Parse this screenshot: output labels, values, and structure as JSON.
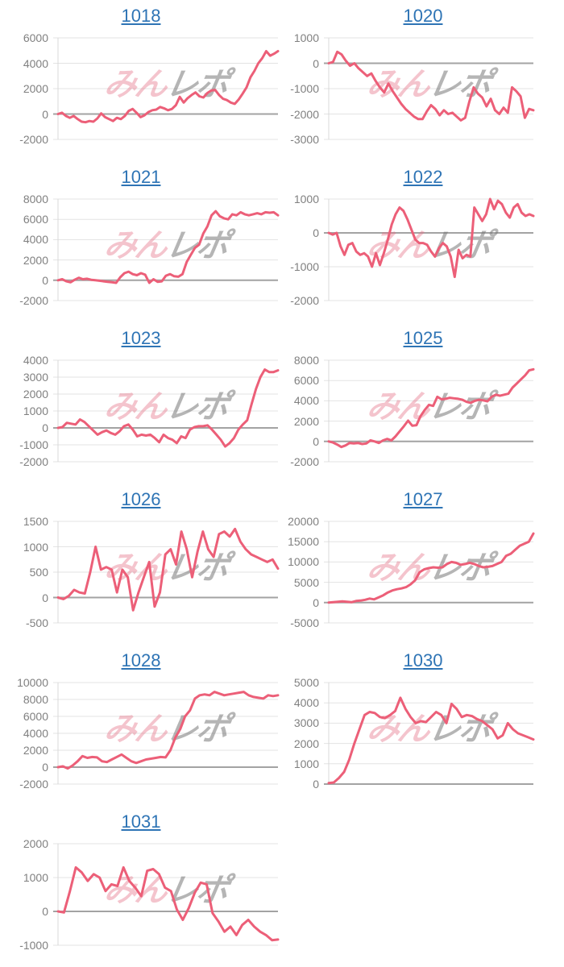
{
  "page": {
    "background": "#ffffff"
  },
  "styles": {
    "line_color": "#ec5f78",
    "grid_color": "#e3e3e3",
    "zero_line_color": "#a3a3a3",
    "axis_color": "#d9d9d9",
    "tick_label_color": "#808080",
    "title_link_color": "#2e74b5",
    "watermark_pink": "rgba(228,108,130,0.40)",
    "watermark_gray": "rgba(120,120,120,0.55)"
  },
  "watermark": {
    "pink_text": "みん",
    "gray_text": "レポ"
  },
  "chart_data": [
    {
      "type": "line",
      "title": "1018",
      "ylim": [
        -2000,
        6000
      ],
      "ytick_step": 2000,
      "yticks": [
        "6000",
        "4000",
        "2000",
        "0",
        "-2000"
      ],
      "values": [
        0,
        100,
        -150,
        -300,
        -150,
        -400,
        -600,
        -650,
        -550,
        -600,
        -350,
        50,
        -250,
        -400,
        -550,
        -300,
        -400,
        -150,
        250,
        400,
        100,
        -250,
        -100,
        150,
        300,
        350,
        550,
        450,
        300,
        400,
        700,
        1350,
        900,
        1250,
        1500,
        1700,
        1400,
        1300,
        1650,
        1850,
        1900,
        1500,
        1200,
        1100,
        900,
        800,
        1150,
        1600,
        2100,
        2900,
        3400,
        4000,
        4400,
        4950,
        4600,
        4750,
        4950
      ]
    },
    {
      "type": "line",
      "title": "1020",
      "ylim": [
        -3000,
        1000
      ],
      "ytick_step": 1000,
      "yticks": [
        "1000",
        "0",
        "-1000",
        "-2000",
        "-3000"
      ],
      "values": [
        0,
        50,
        450,
        350,
        100,
        -100,
        0,
        -200,
        -350,
        -500,
        -400,
        -700,
        -950,
        -1150,
        -800,
        -1100,
        -1350,
        -1600,
        -1800,
        -1950,
        -2100,
        -2200,
        -2200,
        -1900,
        -1650,
        -1800,
        -2050,
        -1850,
        -2000,
        -1950,
        -2100,
        -2250,
        -2150,
        -1500,
        -950,
        -1200,
        -1350,
        -1700,
        -1400,
        -1850,
        -2000,
        -1750,
        -1950,
        -950,
        -1100,
        -1300,
        -2150,
        -1800,
        -1850
      ]
    },
    {
      "type": "line",
      "title": "1021",
      "ylim": [
        -2000,
        8000
      ],
      "ytick_step": 2000,
      "yticks": [
        "8000",
        "6000",
        "4000",
        "2000",
        "0",
        "-2000"
      ],
      "values": [
        0,
        100,
        -100,
        -200,
        50,
        250,
        100,
        150,
        50,
        0,
        -50,
        -100,
        -150,
        -200,
        -250,
        300,
        700,
        850,
        600,
        500,
        700,
        550,
        -250,
        100,
        -150,
        -100,
        450,
        600,
        400,
        350,
        600,
        1800,
        2500,
        3200,
        3500,
        4600,
        5300,
        6400,
        6800,
        6300,
        6100,
        6000,
        6500,
        6400,
        6700,
        6500,
        6400,
        6500,
        6600,
        6500,
        6700,
        6650,
        6700,
        6400
      ]
    },
    {
      "type": "line",
      "title": "1022",
      "ylim": [
        -2000,
        1000
      ],
      "ytick_step": 1000,
      "yticks": [
        "1000",
        "0",
        "-1000",
        "-2000"
      ],
      "values": [
        0,
        -50,
        0,
        -400,
        -650,
        -350,
        -300,
        -550,
        -650,
        -600,
        -700,
        -1000,
        -600,
        -950,
        -600,
        -200,
        250,
        550,
        750,
        650,
        400,
        100,
        -200,
        -300,
        -300,
        -350,
        -550,
        -700,
        -450,
        -300,
        -400,
        -700,
        -1300,
        -500,
        -750,
        -650,
        -700,
        750,
        550,
        350,
        550,
        1000,
        700,
        950,
        850,
        600,
        450,
        750,
        850,
        600,
        500,
        550,
        500
      ]
    },
    {
      "type": "line",
      "title": "1023",
      "ylim": [
        -2000,
        4000
      ],
      "ytick_step": 1000,
      "yticks": [
        "4000",
        "3000",
        "2000",
        "1000",
        "0",
        "-1000",
        "-2000"
      ],
      "values": [
        0,
        50,
        300,
        250,
        200,
        500,
        350,
        100,
        -150,
        -400,
        -250,
        -150,
        -300,
        -400,
        -200,
        100,
        200,
        -100,
        -500,
        -400,
        -450,
        -400,
        -600,
        -850,
        -400,
        -600,
        -700,
        -900,
        -500,
        -600,
        -100,
        50,
        100,
        100,
        150,
        -100,
        -400,
        -700,
        -1100,
        -900,
        -600,
        -100,
        200,
        450,
        1400,
        2300,
        3000,
        3450,
        3300,
        3300,
        3400
      ]
    },
    {
      "type": "line",
      "title": "1025",
      "ylim": [
        -2000,
        8000
      ],
      "ytick_step": 2000,
      "yticks": [
        "8000",
        "6000",
        "4000",
        "2000",
        "0",
        "-2000"
      ],
      "values": [
        0,
        -100,
        -300,
        -550,
        -400,
        -150,
        -200,
        -150,
        -250,
        -200,
        100,
        0,
        -150,
        100,
        250,
        100,
        500,
        1000,
        1500,
        2050,
        1550,
        1600,
        2500,
        3100,
        3600,
        3500,
        4400,
        4150,
        4200,
        4300,
        4250,
        4200,
        4100,
        3900,
        3800,
        4000,
        4100,
        4050,
        3950,
        4400,
        4600,
        4500,
        4600,
        4700,
        5300,
        5700,
        6100,
        6500,
        7000,
        7100
      ]
    },
    {
      "type": "line",
      "title": "1026",
      "ylim": [
        -500,
        1500
      ],
      "ytick_step": 500,
      "yticks": [
        "1500",
        "1000",
        "500",
        "0",
        "-500"
      ],
      "values": [
        0,
        -30,
        30,
        150,
        100,
        80,
        500,
        1000,
        550,
        600,
        550,
        100,
        550,
        400,
        -250,
        100,
        400,
        700,
        -180,
        100,
        850,
        950,
        650,
        1300,
        950,
        400,
        900,
        1300,
        950,
        800,
        1250,
        1300,
        1200,
        1350,
        1100,
        950,
        850,
        800,
        750,
        700,
        750,
        570
      ]
    },
    {
      "type": "line",
      "title": "1027",
      "ylim": [
        -5000,
        20000
      ],
      "ytick_step": 5000,
      "yticks": [
        "20000",
        "15000",
        "10000",
        "5000",
        "0",
        "-5000"
      ],
      "values": [
        0,
        100,
        200,
        300,
        200,
        100,
        400,
        500,
        700,
        1000,
        800,
        1300,
        1800,
        2500,
        3000,
        3300,
        3500,
        3800,
        4500,
        5500,
        7500,
        8200,
        8500,
        8700,
        8600,
        8700,
        9500,
        10000,
        9800,
        9300,
        9500,
        9800,
        9500,
        9000,
        8700,
        8800,
        9000,
        9500,
        10000,
        11500,
        12000,
        13000,
        14000,
        14500,
        15000,
        17000
      ]
    },
    {
      "type": "line",
      "title": "1028",
      "ylim": [
        -2000,
        10000
      ],
      "ytick_step": 2000,
      "yticks": [
        "10000",
        "8000",
        "6000",
        "4000",
        "2000",
        "0",
        "-2000"
      ],
      "values": [
        0,
        100,
        -150,
        200,
        700,
        1300,
        1100,
        1200,
        1150,
        700,
        600,
        900,
        1200,
        1500,
        1100,
        700,
        500,
        700,
        900,
        1000,
        1100,
        1200,
        1150,
        2000,
        3500,
        4500,
        6000,
        6700,
        8100,
        8500,
        8600,
        8500,
        8900,
        8700,
        8500,
        8600,
        8700,
        8800,
        8900,
        8500,
        8300,
        8200,
        8100,
        8500,
        8400,
        8500
      ]
    },
    {
      "type": "line",
      "title": "1030",
      "ylim": [
        0,
        5000
      ],
      "ytick_step": 1000,
      "yticks": [
        "5000",
        "4000",
        "3000",
        "2000",
        "1000",
        "0"
      ],
      "values": [
        50,
        80,
        300,
        600,
        1200,
        2000,
        2700,
        3400,
        3550,
        3500,
        3300,
        3250,
        3400,
        3600,
        4250,
        3700,
        3300,
        3000,
        3100,
        3050,
        3300,
        3550,
        3400,
        3000,
        3950,
        3700,
        3300,
        3400,
        3350,
        3200,
        3100,
        2900,
        2700,
        2250,
        2400,
        3000,
        2700,
        2500,
        2400,
        2300,
        2200
      ]
    },
    {
      "type": "line",
      "title": "1031",
      "ylim": [
        -1000,
        2000
      ],
      "ytick_step": 1000,
      "yticks": [
        "2000",
        "1000",
        "0",
        "-1000"
      ],
      "values": [
        0,
        -30,
        600,
        1300,
        1150,
        900,
        1100,
        1000,
        600,
        800,
        750,
        1300,
        900,
        700,
        450,
        1200,
        1250,
        1100,
        700,
        600,
        50,
        -250,
        100,
        550,
        850,
        800,
        -50,
        -300,
        -600,
        -450,
        -700,
        -400,
        -250,
        -450,
        -600,
        -700,
        -850,
        -830
      ]
    }
  ]
}
